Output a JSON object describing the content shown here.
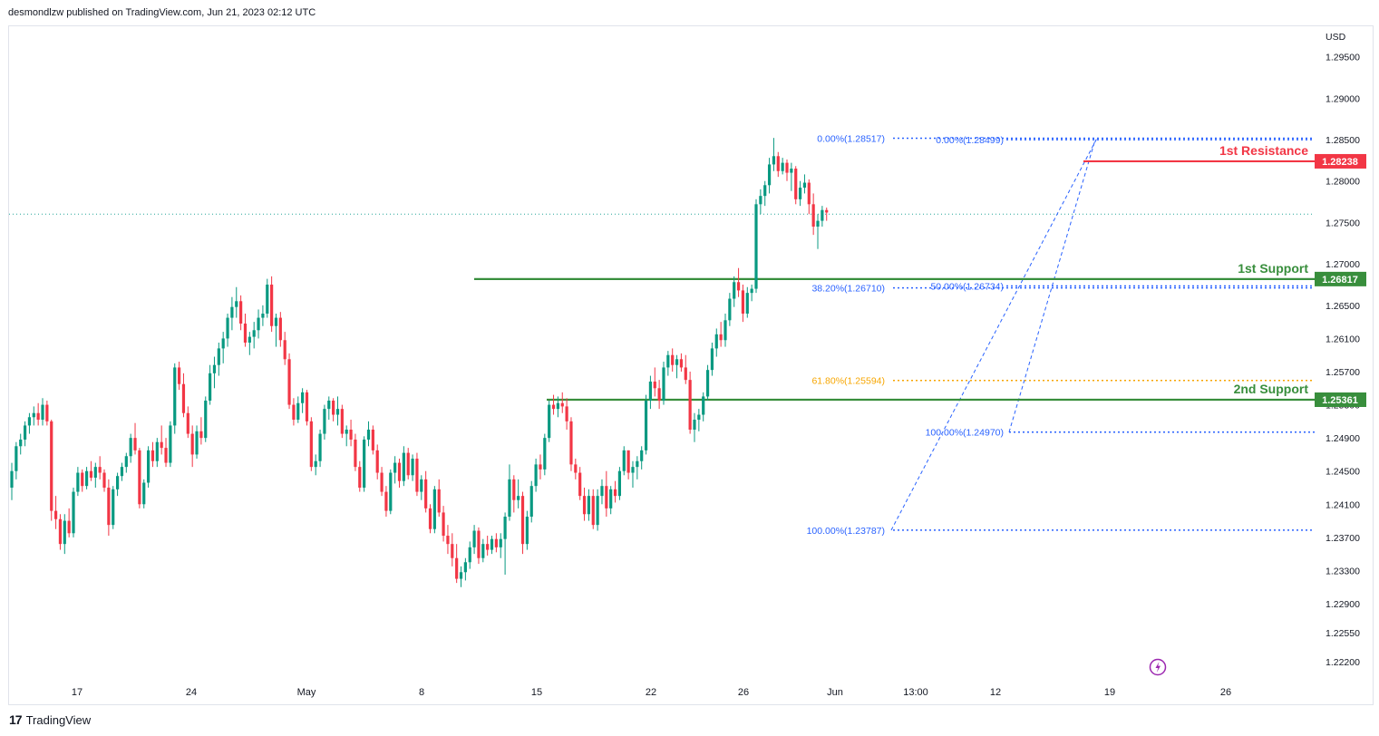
{
  "header": {
    "text": "desmondlzw published on TradingView.com, Jun 21, 2023 02:12 UTC"
  },
  "footer": {
    "brand": "TradingView",
    "logo_mark": "17"
  },
  "chart_data": {
    "type": "candlestick",
    "currency": "USD",
    "y_ticks": [
      "1.29500",
      "1.29000",
      "1.28500",
      "1.28000",
      "1.27500",
      "1.27000",
      "1.26500",
      "1.26100",
      "1.25700",
      "1.25300",
      "1.24900",
      "1.24500",
      "1.24100",
      "1.23700",
      "1.23300",
      "1.22900",
      "1.22550",
      "1.22200"
    ],
    "x_ticks": [
      "17",
      "24",
      "May",
      "8",
      "15",
      "22",
      "26",
      "Jun",
      "13:00",
      "12",
      "19",
      "26"
    ],
    "last_price_line": 1.276,
    "levels": [
      {
        "label": "1st Resistance",
        "price_label": "1.28238",
        "value": 1.28238,
        "color": "#f23645"
      },
      {
        "label": "1st Support",
        "price_label": "1.26817",
        "value": 1.26817,
        "color": "#388e3c"
      },
      {
        "label": "2nd Support",
        "price_label": "1.25361",
        "value": 1.25361,
        "color": "#388e3c"
      }
    ],
    "fib_labels": [
      {
        "text": "0.00%(1.28517)",
        "value": 1.28517,
        "color": "#2962ff"
      },
      {
        "text": "0.00%(1.28499)",
        "value": 1.28499,
        "color": "#2962ff"
      },
      {
        "text": "38.20%(1.26710)",
        "value": 1.2671,
        "color": "#2962ff"
      },
      {
        "text": "50.00%(1.26734)",
        "value": 1.26734,
        "color": "#2962ff"
      },
      {
        "text": "61.80%(1.25594)",
        "value": 1.25594,
        "color": "#f7a600"
      },
      {
        "text": "100.00%(1.24970)",
        "value": 1.2497,
        "color": "#2962ff"
      },
      {
        "text": "100.00%(1.23787)",
        "value": 1.23787,
        "color": "#2962ff"
      }
    ],
    "ohlc": [
      [
        1.243,
        1.246,
        1.2415,
        1.245
      ],
      [
        1.245,
        1.2485,
        1.244,
        1.248
      ],
      [
        1.248,
        1.2495,
        1.247,
        1.2488
      ],
      [
        1.2488,
        1.251,
        1.248,
        1.2505
      ],
      [
        1.2505,
        1.252,
        1.2495,
        1.2515
      ],
      [
        1.2515,
        1.2528,
        1.2505,
        1.252
      ],
      [
        1.252,
        1.2532,
        1.2505,
        1.2512
      ],
      [
        1.2512,
        1.2538,
        1.2505,
        1.253
      ],
      [
        1.253,
        1.2535,
        1.2505,
        1.251
      ],
      [
        1.251,
        1.2512,
        1.239,
        1.2402
      ],
      [
        1.2402,
        1.242,
        1.238,
        1.2392
      ],
      [
        1.2392,
        1.2398,
        1.2355,
        1.2362
      ],
      [
        1.2362,
        1.2398,
        1.235,
        1.239
      ],
      [
        1.239,
        1.2405,
        1.237,
        1.2375
      ],
      [
        1.2375,
        1.243,
        1.237,
        1.2425
      ],
      [
        1.2425,
        1.2455,
        1.242,
        1.2448
      ],
      [
        1.2448,
        1.2452,
        1.2425,
        1.2432
      ],
      [
        1.2432,
        1.2455,
        1.2428,
        1.245
      ],
      [
        1.245,
        1.2462,
        1.2438,
        1.2442
      ],
      [
        1.2442,
        1.246,
        1.243,
        1.2455
      ],
      [
        1.2455,
        1.2468,
        1.244,
        1.2448
      ],
      [
        1.2448,
        1.2452,
        1.2425,
        1.243
      ],
      [
        1.243,
        1.244,
        1.2372,
        1.2385
      ],
      [
        1.2385,
        1.2432,
        1.238,
        1.2428
      ],
      [
        1.2428,
        1.2448,
        1.242,
        1.2444
      ],
      [
        1.2444,
        1.246,
        1.2438,
        1.2455
      ],
      [
        1.2455,
        1.2472,
        1.2448,
        1.2468
      ],
      [
        1.2468,
        1.2495,
        1.246,
        1.249
      ],
      [
        1.249,
        1.2508,
        1.247,
        1.2475
      ],
      [
        1.2475,
        1.2478,
        1.2405,
        1.241
      ],
      [
        1.241,
        1.244,
        1.2405,
        1.2436
      ],
      [
        1.2436,
        1.248,
        1.243,
        1.2475
      ],
      [
        1.2475,
        1.2485,
        1.2455,
        1.2462
      ],
      [
        1.2462,
        1.249,
        1.2455,
        1.2485
      ],
      [
        1.2485,
        1.2505,
        1.247,
        1.2478
      ],
      [
        1.2478,
        1.249,
        1.2455,
        1.246
      ],
      [
        1.246,
        1.251,
        1.2455,
        1.2505
      ],
      [
        1.2505,
        1.258,
        1.2495,
        1.2575
      ],
      [
        1.2575,
        1.2582,
        1.2548,
        1.2555
      ],
      [
        1.2555,
        1.2568,
        1.2515,
        1.252
      ],
      [
        1.252,
        1.2528,
        1.249,
        1.2495
      ],
      [
        1.2495,
        1.2505,
        1.2455,
        1.247
      ],
      [
        1.247,
        1.2505,
        1.2465,
        1.2498
      ],
      [
        1.2498,
        1.2515,
        1.2482,
        1.249
      ],
      [
        1.249,
        1.254,
        1.2485,
        1.2535
      ],
      [
        1.2535,
        1.2578,
        1.253,
        1.2568
      ],
      [
        1.2568,
        1.2588,
        1.255,
        1.2578
      ],
      [
        1.2578,
        1.2605,
        1.2565,
        1.2598
      ],
      [
        1.2598,
        1.2618,
        1.258,
        1.261
      ],
      [
        1.261,
        1.264,
        1.26,
        1.2635
      ],
      [
        1.2635,
        1.266,
        1.262,
        1.2648
      ],
      [
        1.2648,
        1.2672,
        1.2635,
        1.2655
      ],
      [
        1.2655,
        1.2662,
        1.262,
        1.2628
      ],
      [
        1.2628,
        1.264,
        1.26,
        1.2605
      ],
      [
        1.2605,
        1.2618,
        1.259,
        1.2612
      ],
      [
        1.2612,
        1.263,
        1.2598,
        1.262
      ],
      [
        1.262,
        1.2645,
        1.261,
        1.2635
      ],
      [
        1.2635,
        1.265,
        1.2625,
        1.264
      ],
      [
        1.264,
        1.2682,
        1.2635,
        1.2675
      ],
      [
        1.2675,
        1.2685,
        1.2618,
        1.2625
      ],
      [
        1.2625,
        1.264,
        1.26,
        1.2635
      ],
      [
        1.2635,
        1.2642,
        1.26,
        1.2608
      ],
      [
        1.2608,
        1.2618,
        1.2578,
        1.2585
      ],
      [
        1.2585,
        1.2592,
        1.2525,
        1.253
      ],
      [
        1.253,
        1.2538,
        1.2505,
        1.2512
      ],
      [
        1.2512,
        1.254,
        1.2508,
        1.2532
      ],
      [
        1.2532,
        1.255,
        1.252,
        1.2545
      ],
      [
        1.2545,
        1.2548,
        1.2505,
        1.251
      ],
      [
        1.251,
        1.2515,
        1.245,
        1.2455
      ],
      [
        1.2455,
        1.247,
        1.2445,
        1.2462
      ],
      [
        1.2462,
        1.25,
        1.2455,
        1.2495
      ],
      [
        1.2495,
        1.253,
        1.2488,
        1.2525
      ],
      [
        1.2525,
        1.254,
        1.2512,
        1.2535
      ],
      [
        1.2535,
        1.2538,
        1.251,
        1.2518
      ],
      [
        1.2518,
        1.254,
        1.2505,
        1.2525
      ],
      [
        1.2525,
        1.253,
        1.249,
        1.2495
      ],
      [
        1.2495,
        1.2505,
        1.248,
        1.25
      ],
      [
        1.25,
        1.2512,
        1.248,
        1.2488
      ],
      [
        1.2488,
        1.2495,
        1.245,
        1.2455
      ],
      [
        1.2455,
        1.2462,
        1.2425,
        1.243
      ],
      [
        1.243,
        1.2492,
        1.2425,
        1.2488
      ],
      [
        1.2488,
        1.251,
        1.248,
        1.25
      ],
      [
        1.25,
        1.2505,
        1.247,
        1.2475
      ],
      [
        1.2475,
        1.2482,
        1.244,
        1.2448
      ],
      [
        1.2448,
        1.2455,
        1.242,
        1.2425
      ],
      [
        1.2425,
        1.2432,
        1.2395,
        1.2402
      ],
      [
        1.2402,
        1.2452,
        1.2398,
        1.2448
      ],
      [
        1.2448,
        1.2468,
        1.2435,
        1.246
      ],
      [
        1.246,
        1.2465,
        1.243,
        1.2438
      ],
      [
        1.2438,
        1.248,
        1.2432,
        1.2472
      ],
      [
        1.2472,
        1.2478,
        1.244,
        1.2445
      ],
      [
        1.2445,
        1.247,
        1.2438,
        1.2465
      ],
      [
        1.2465,
        1.2472,
        1.242,
        1.2425
      ],
      [
        1.2425,
        1.2445,
        1.2415,
        1.244
      ],
      [
        1.244,
        1.245,
        1.24,
        1.2405
      ],
      [
        1.2405,
        1.241,
        1.2375,
        1.238
      ],
      [
        1.238,
        1.2432,
        1.2375,
        1.2428
      ],
      [
        1.2428,
        1.244,
        1.2395,
        1.24
      ],
      [
        1.24,
        1.2408,
        1.2365,
        1.2372
      ],
      [
        1.2372,
        1.2385,
        1.235,
        1.2362
      ],
      [
        1.2362,
        1.2375,
        1.2335,
        1.2345
      ],
      [
        1.2345,
        1.2362,
        1.2315,
        1.232
      ],
      [
        1.232,
        1.2335,
        1.231,
        1.2328
      ],
      [
        1.2328,
        1.2345,
        1.2318,
        1.234
      ],
      [
        1.234,
        1.2365,
        1.2332,
        1.2358
      ],
      [
        1.2358,
        1.2385,
        1.235,
        1.2378
      ],
      [
        1.2378,
        1.2382,
        1.2338,
        1.2345
      ],
      [
        1.2345,
        1.2368,
        1.234,
        1.2362
      ],
      [
        1.2362,
        1.2372,
        1.2348,
        1.2355
      ],
      [
        1.2355,
        1.2372,
        1.235,
        1.2368
      ],
      [
        1.2368,
        1.2375,
        1.2352,
        1.2358
      ],
      [
        1.2358,
        1.2375,
        1.2345,
        1.2368
      ],
      [
        1.2368,
        1.24,
        1.2325,
        1.2395
      ],
      [
        1.2395,
        1.2458,
        1.239,
        1.244
      ],
      [
        1.244,
        1.2445,
        1.24,
        1.2415
      ],
      [
        1.2415,
        1.244,
        1.2405,
        1.242
      ],
      [
        1.242,
        1.2425,
        1.235,
        1.2362
      ],
      [
        1.2362,
        1.2402,
        1.2355,
        1.2395
      ],
      [
        1.2395,
        1.2438,
        1.2388,
        1.2432
      ],
      [
        1.2432,
        1.2465,
        1.2425,
        1.2458
      ],
      [
        1.2458,
        1.247,
        1.244,
        1.2452
      ],
      [
        1.2452,
        1.2495,
        1.2445,
        1.249
      ],
      [
        1.249,
        1.2535,
        1.2485,
        1.253
      ],
      [
        1.253,
        1.2542,
        1.2518,
        1.2525
      ],
      [
        1.2525,
        1.254,
        1.2515,
        1.2532
      ],
      [
        1.2532,
        1.2545,
        1.252,
        1.2528
      ],
      [
        1.2528,
        1.2538,
        1.25,
        1.251
      ],
      [
        1.251,
        1.2515,
        1.245,
        1.2458
      ],
      [
        1.2458,
        1.2465,
        1.244,
        1.2448
      ],
      [
        1.2448,
        1.2455,
        1.2415,
        1.242
      ],
      [
        1.242,
        1.243,
        1.239,
        1.2398
      ],
      [
        1.2398,
        1.2428,
        1.239,
        1.242
      ],
      [
        1.242,
        1.2428,
        1.238,
        1.2385
      ],
      [
        1.2385,
        1.2428,
        1.2378,
        1.242
      ],
      [
        1.242,
        1.244,
        1.241,
        1.2432
      ],
      [
        1.2432,
        1.245,
        1.2395,
        1.2405
      ],
      [
        1.2405,
        1.2432,
        1.2398,
        1.2428
      ],
      [
        1.2428,
        1.2438,
        1.2412,
        1.242
      ],
      [
        1.242,
        1.2455,
        1.2415,
        1.245
      ],
      [
        1.245,
        1.248,
        1.2445,
        1.2475
      ],
      [
        1.2475,
        1.2475,
        1.244,
        1.2448
      ],
      [
        1.2448,
        1.2462,
        1.243,
        1.2455
      ],
      [
        1.2455,
        1.2468,
        1.244,
        1.2462
      ],
      [
        1.2462,
        1.248,
        1.2452,
        1.2475
      ],
      [
        1.2475,
        1.2542,
        1.247,
        1.2535
      ],
      [
        1.2535,
        1.2565,
        1.2525,
        1.2558
      ],
      [
        1.2558,
        1.2575,
        1.254,
        1.255
      ],
      [
        1.255,
        1.256,
        1.2525,
        1.2535
      ],
      [
        1.2535,
        1.2582,
        1.253,
        1.2575
      ],
      [
        1.2575,
        1.2595,
        1.2565,
        1.259
      ],
      [
        1.259,
        1.2598,
        1.257,
        1.2578
      ],
      [
        1.2578,
        1.259,
        1.2562,
        1.2585
      ],
      [
        1.2585,
        1.2592,
        1.257,
        1.2575
      ],
      [
        1.2575,
        1.259,
        1.2555,
        1.256
      ],
      [
        1.256,
        1.257,
        1.2495,
        1.25
      ],
      [
        1.25,
        1.252,
        1.2485,
        1.2512
      ],
      [
        1.2512,
        1.2525,
        1.2498,
        1.2518
      ],
      [
        1.2518,
        1.2545,
        1.251,
        1.254
      ],
      [
        1.254,
        1.2578,
        1.2535,
        1.2572
      ],
      [
        1.2572,
        1.2605,
        1.2565,
        1.2598
      ],
      [
        1.2598,
        1.2622,
        1.2588,
        1.2615
      ],
      [
        1.2615,
        1.263,
        1.26,
        1.2608
      ],
      [
        1.2608,
        1.264,
        1.26,
        1.2632
      ],
      [
        1.2632,
        1.2665,
        1.2625,
        1.2658
      ],
      [
        1.2658,
        1.2685,
        1.2648,
        1.2678
      ],
      [
        1.2678,
        1.2695,
        1.266,
        1.2668
      ],
      [
        1.2668,
        1.2675,
        1.263,
        1.264
      ],
      [
        1.264,
        1.2672,
        1.2635,
        1.2665
      ],
      [
        1.2665,
        1.2675,
        1.2655,
        1.267
      ],
      [
        1.267,
        1.2778,
        1.2665,
        1.2772
      ],
      [
        1.2772,
        1.279,
        1.276,
        1.2782
      ],
      [
        1.2782,
        1.28,
        1.277,
        1.2795
      ],
      [
        1.2795,
        1.2828,
        1.2785,
        1.282
      ],
      [
        1.282,
        1.2852,
        1.2812,
        1.283
      ],
      [
        1.283,
        1.2835,
        1.2805,
        1.2812
      ],
      [
        1.2812,
        1.2828,
        1.2808,
        1.2822
      ],
      [
        1.2822,
        1.2826,
        1.28,
        1.281
      ],
      [
        1.281,
        1.2822,
        1.2788,
        1.2815
      ],
      [
        1.2815,
        1.2818,
        1.2772,
        1.2778
      ],
      [
        1.2778,
        1.28,
        1.277,
        1.2792
      ],
      [
        1.2792,
        1.2808,
        1.2785,
        1.2798
      ],
      [
        1.2798,
        1.2802,
        1.276,
        1.2772
      ],
      [
        1.2772,
        1.2785,
        1.2735,
        1.2745
      ],
      [
        1.2745,
        1.276,
        1.2718,
        1.2752
      ],
      [
        1.2752,
        1.277,
        1.2745,
        1.2765
      ],
      [
        1.2765,
        1.2768,
        1.2752,
        1.2762
      ]
    ]
  }
}
